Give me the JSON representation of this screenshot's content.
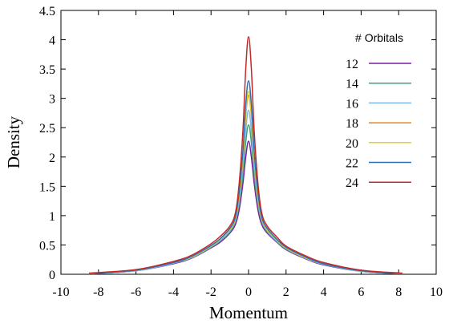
{
  "chart_data": {
    "type": "line",
    "title": "",
    "xlabel": "Momentum",
    "ylabel": "Density",
    "xlim": [
      -10,
      10
    ],
    "ylim": [
      0,
      4.5
    ],
    "xticks": [
      -10,
      -8,
      -6,
      -4,
      -2,
      0,
      2,
      4,
      6,
      8,
      10
    ],
    "yticks": [
      0,
      0.5,
      1,
      1.5,
      2,
      2.5,
      3,
      3.5,
      4,
      4.5
    ],
    "xtick_labels": [
      "-10",
      "-8",
      "-6",
      "-4",
      "-2",
      "0",
      "2",
      "4",
      "6",
      "8",
      "10"
    ],
    "ytick_labels": [
      "0",
      "0.5",
      "1",
      "1.5",
      "2",
      "2.5",
      "3",
      "3.5",
      "4",
      "4.5"
    ],
    "grid": false,
    "legend_title": "# Orbitals",
    "legend_position": "top-right",
    "x": [
      -8.5,
      -6,
      -4,
      -3,
      -2,
      -1.5,
      -1,
      -0.7,
      -0.5,
      -0.3,
      -0.15,
      0,
      0.15,
      0.3,
      0.5,
      0.7,
      1,
      1.5,
      2,
      3,
      4,
      6,
      8.2
    ],
    "series": [
      {
        "name": "12",
        "color": "#7b1fa2",
        "values": [
          0.01,
          0.06,
          0.18,
          0.28,
          0.45,
          0.55,
          0.7,
          0.85,
          1.1,
          1.55,
          2.0,
          2.27,
          2.0,
          1.55,
          1.1,
          0.85,
          0.7,
          0.55,
          0.42,
          0.27,
          0.16,
          0.05,
          0.01
        ]
      },
      {
        "name": "14",
        "color": "#3aa372",
        "values": [
          0.01,
          0.06,
          0.19,
          0.29,
          0.46,
          0.57,
          0.72,
          0.9,
          1.2,
          1.7,
          2.25,
          2.55,
          2.25,
          1.7,
          1.2,
          0.9,
          0.72,
          0.56,
          0.43,
          0.28,
          0.17,
          0.05,
          0.01
        ]
      },
      {
        "name": "16",
        "color": "#7fb8e6",
        "values": [
          0.01,
          0.06,
          0.19,
          0.29,
          0.47,
          0.58,
          0.74,
          0.92,
          1.25,
          1.85,
          2.45,
          2.8,
          2.45,
          1.85,
          1.25,
          0.92,
          0.74,
          0.57,
          0.44,
          0.28,
          0.17,
          0.05,
          0.01
        ]
      },
      {
        "name": "18",
        "color": "#e08a1a",
        "values": [
          0.01,
          0.07,
          0.2,
          0.3,
          0.48,
          0.6,
          0.76,
          0.95,
          1.32,
          1.98,
          2.7,
          3.05,
          2.7,
          1.98,
          1.32,
          0.95,
          0.76,
          0.59,
          0.45,
          0.29,
          0.18,
          0.06,
          0.01
        ]
      },
      {
        "name": "20",
        "color": "#ead11a",
        "values": [
          0.01,
          0.07,
          0.2,
          0.3,
          0.48,
          0.6,
          0.76,
          0.96,
          1.35,
          2.02,
          2.75,
          3.12,
          2.75,
          2.02,
          1.35,
          0.96,
          0.76,
          0.59,
          0.45,
          0.29,
          0.18,
          0.06,
          0.01
        ]
      },
      {
        "name": "22",
        "color": "#2a6fb8",
        "values": [
          0.01,
          0.07,
          0.2,
          0.31,
          0.49,
          0.61,
          0.78,
          0.98,
          1.4,
          2.1,
          2.9,
          3.3,
          2.9,
          2.1,
          1.4,
          0.98,
          0.78,
          0.6,
          0.46,
          0.3,
          0.18,
          0.06,
          0.01
        ]
      },
      {
        "name": "24",
        "color": "#c62828",
        "values": [
          0.02,
          0.08,
          0.22,
          0.33,
          0.52,
          0.65,
          0.82,
          1.05,
          1.55,
          2.45,
          3.5,
          4.05,
          3.5,
          2.45,
          1.55,
          1.05,
          0.82,
          0.64,
          0.48,
          0.32,
          0.2,
          0.07,
          0.02
        ]
      }
    ]
  }
}
